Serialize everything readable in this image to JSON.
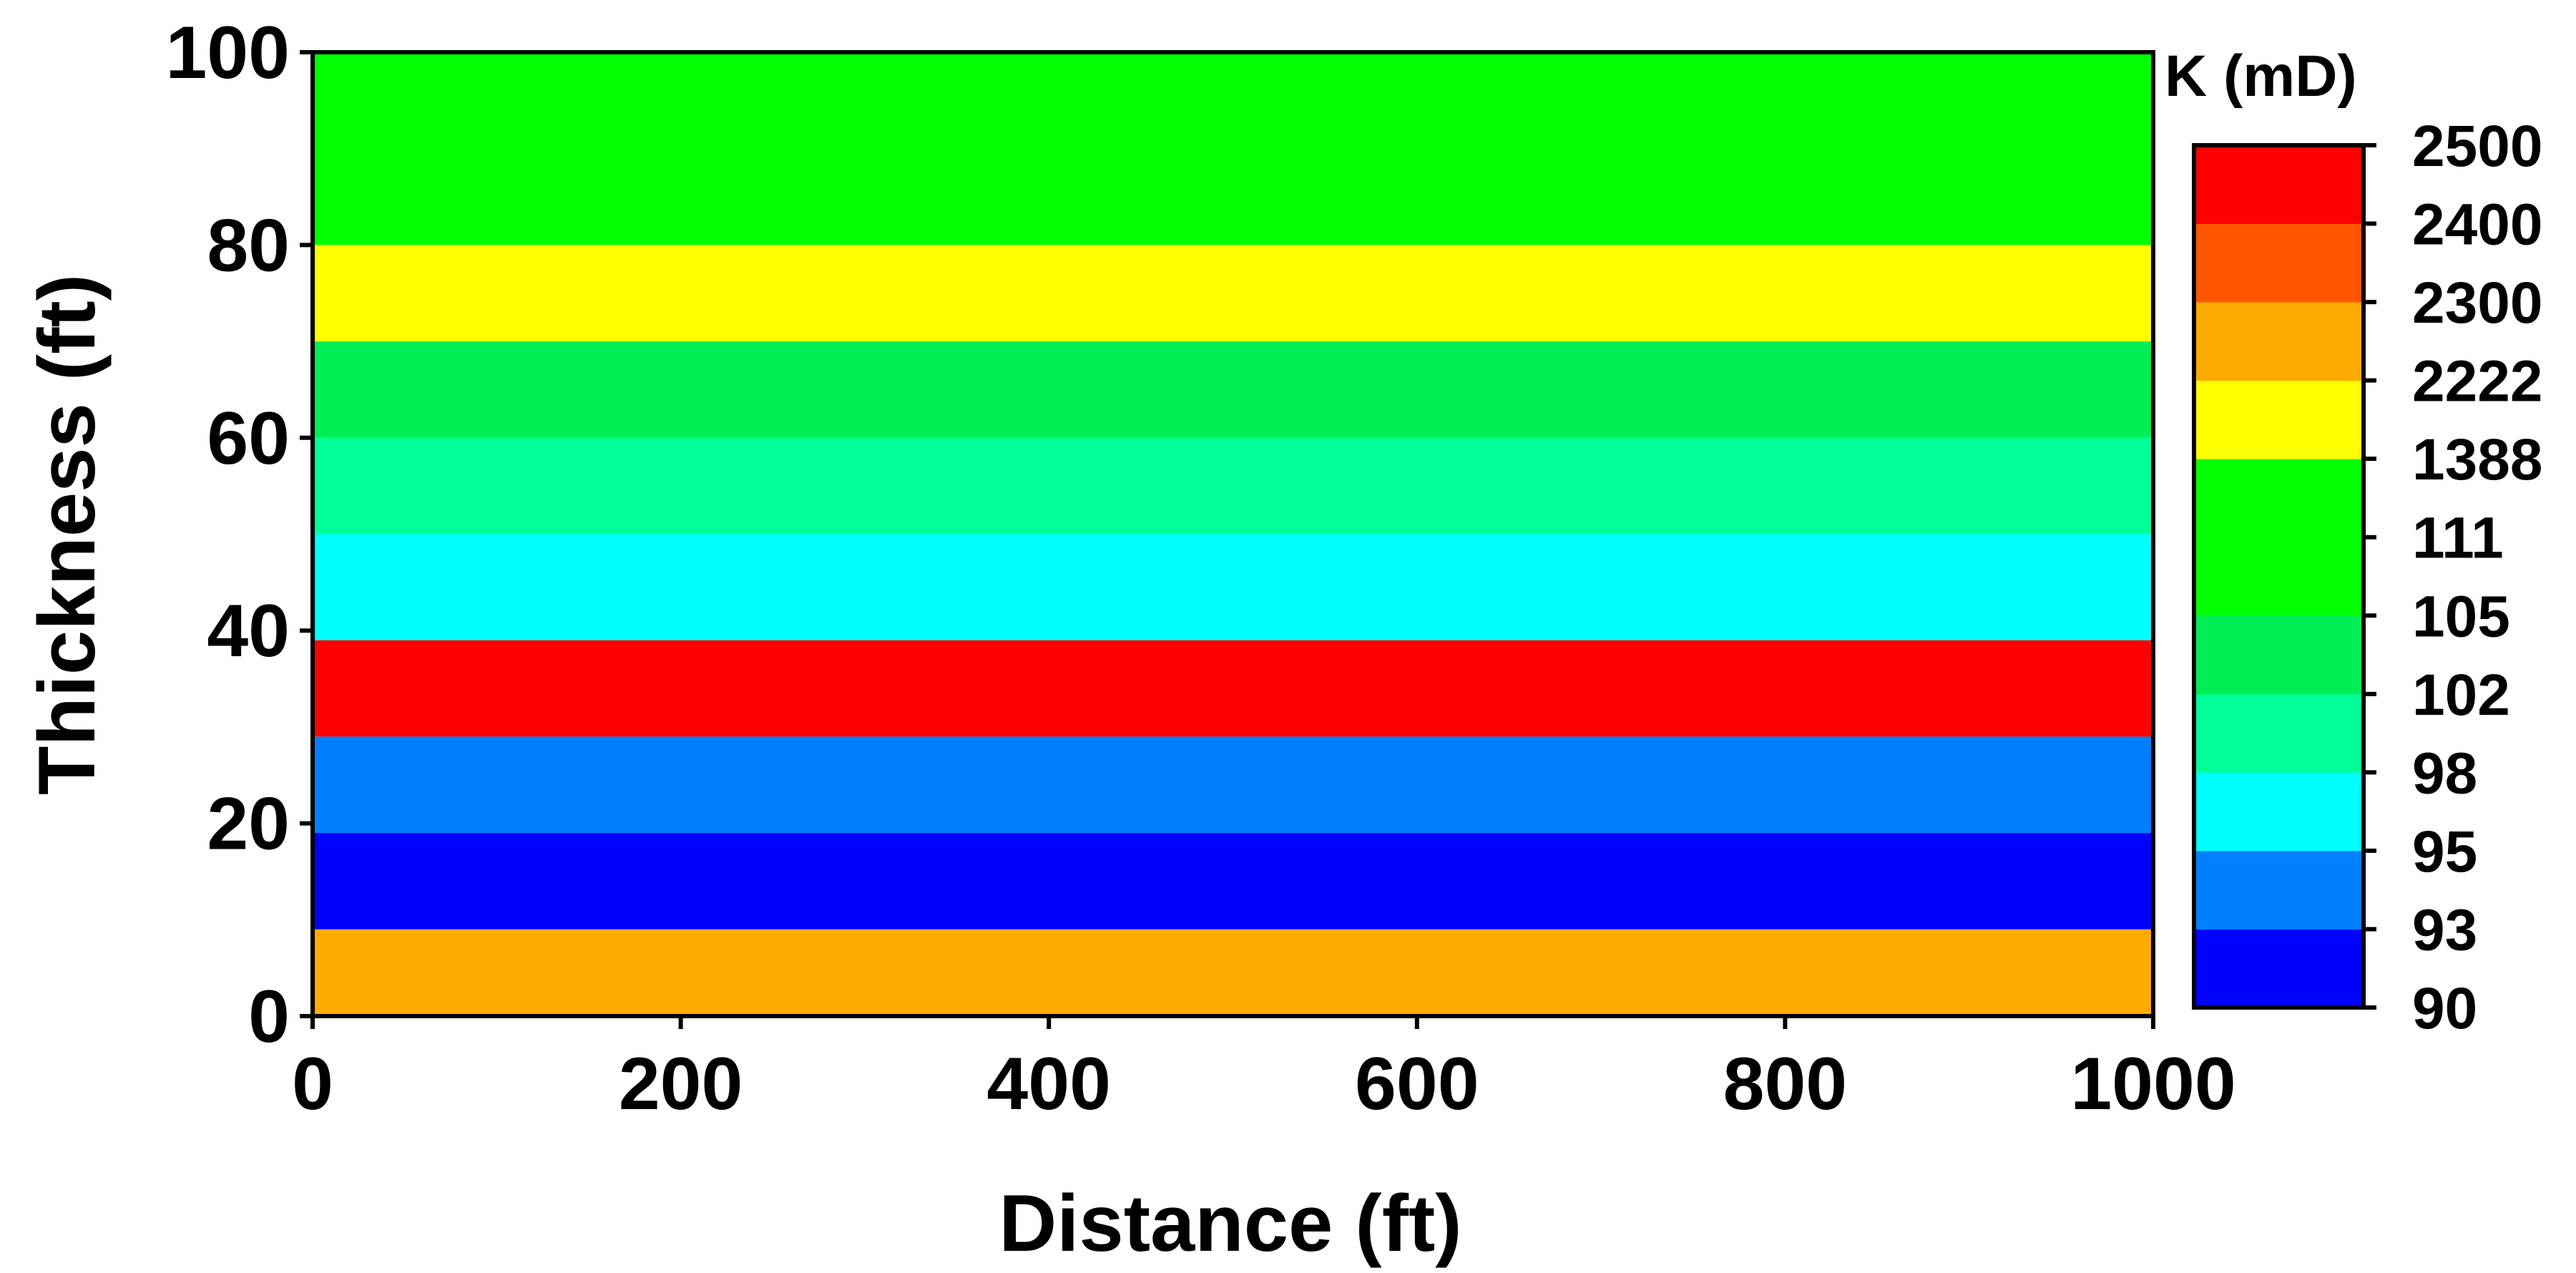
{
  "chart_data": {
    "type": "heatmap",
    "xlabel": "Distance (ft)",
    "ylabel": "Thickness (ft)",
    "xlim": [
      0,
      1000
    ],
    "ylim": [
      0,
      100
    ],
    "x_ticks": [
      "0",
      "200",
      "400",
      "600",
      "800",
      "1000"
    ],
    "y_ticks": [
      "0",
      "20",
      "40",
      "60",
      "80",
      "100"
    ],
    "grid": false,
    "layers": [
      {
        "y_from": 0,
        "y_to": 9,
        "k": "2222-2300",
        "color": "#FFAA00"
      },
      {
        "y_from": 9,
        "y_to": 19,
        "k": "90-93",
        "color": "#0000FF"
      },
      {
        "y_from": 19,
        "y_to": 29,
        "k": "93-95",
        "color": "#0080FF"
      },
      {
        "y_from": 29,
        "y_to": 39,
        "k": "2400-2500",
        "color": "#FF0000"
      },
      {
        "y_from": 39,
        "y_to": 50,
        "k": "95-98",
        "color": "#00FFFF"
      },
      {
        "y_from": 50,
        "y_to": 60,
        "k": "98-102",
        "color": "#00FF99"
      },
      {
        "y_from": 60,
        "y_to": 70,
        "k": "102-105",
        "color": "#00EE55"
      },
      {
        "y_from": 70,
        "y_to": 80,
        "k": "1388-2222",
        "color": "#FFFF00"
      },
      {
        "y_from": 80,
        "y_to": 100,
        "k": "105-111",
        "color": "#00FF00"
      }
    ],
    "colorbar": {
      "title": "K (mD)",
      "ticks": [
        "90",
        "93",
        "95",
        "98",
        "102",
        "105",
        "111",
        "1388",
        "2222",
        "2300",
        "2400",
        "2500"
      ],
      "bands": [
        "#0000FF",
        "#0080FF",
        "#00FFFF",
        "#00FF99",
        "#00EE55",
        "#00FF00",
        "#00FF00",
        "#FFFF00",
        "#FFAA00",
        "#FF5500",
        "#FF0000"
      ]
    }
  }
}
